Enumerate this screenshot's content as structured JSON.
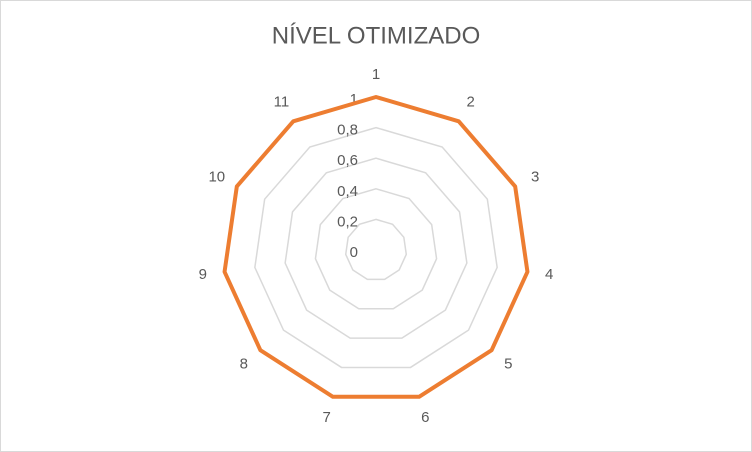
{
  "chart_data": {
    "type": "radar",
    "title": "NÍVEL OTIMIZADO",
    "categories": [
      "1",
      "2",
      "3",
      "4",
      "5",
      "6",
      "7",
      "8",
      "9",
      "10",
      "11"
    ],
    "values": [
      1,
      1,
      1,
      1,
      1,
      1,
      1,
      1,
      1,
      1,
      1
    ],
    "color": "#ed7d31",
    "ylim": [
      0,
      1
    ],
    "yticks": [
      0,
      {
        "value": 0.2,
        "label": "0,2"
      },
      {
        "value": 0.4,
        "label": "0,4"
      },
      {
        "value": 0.6,
        "label": "0,6"
      },
      {
        "value": 0.8,
        "label": "0,8"
      },
      1
    ],
    "grid": true
  }
}
